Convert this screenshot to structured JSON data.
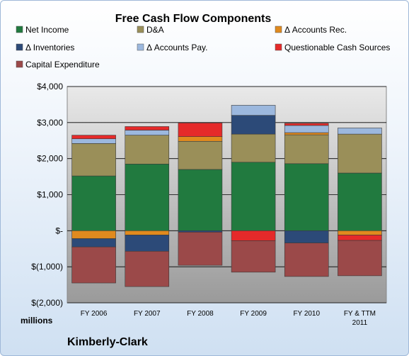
{
  "chart_data": {
    "type": "bar",
    "stacked": true,
    "title": "Free Cash Flow Components",
    "ylabel": "",
    "xlabel": "",
    "unit_label": "millions",
    "company": "Kimberly-Clark",
    "categories": [
      "FY 2006",
      "FY 2007",
      "FY 2008",
      "FY 2009",
      "FY 2010",
      "FY & TTM 2011"
    ],
    "ylim": [
      -2000,
      4000
    ],
    "yticks": [
      {
        "value": 4000,
        "label": "$4,000"
      },
      {
        "value": 3000,
        "label": "$3,000"
      },
      {
        "value": 2000,
        "label": "$2,000"
      },
      {
        "value": 1000,
        "label": "$1,000"
      },
      {
        "value": 0,
        "label": "$-"
      },
      {
        "value": -1000,
        "label": "$(1,000)"
      },
      {
        "value": -2000,
        "label": "$(2,000)"
      }
    ],
    "grid": true,
    "legend_position": "top",
    "series": [
      {
        "name": "Net Income",
        "color": "#217a3f",
        "values": [
          1520,
          1850,
          1700,
          1900,
          1860,
          1600
        ]
      },
      {
        "name": "D&A",
        "color": "#9a8f59",
        "values": [
          900,
          800,
          780,
          780,
          800,
          1080
        ]
      },
      {
        "name": "Δ Accounts Rec.",
        "color": "#e08a1e",
        "values": [
          -220,
          -120,
          130,
          0,
          60,
          -120
        ]
      },
      {
        "name": "Δ Inventories",
        "color": "#2c4a78",
        "values": [
          -230,
          -450,
          -40,
          520,
          -340,
          0
        ]
      },
      {
        "name": "Δ Accounts Pay.",
        "color": "#9cb8de",
        "values": [
          130,
          140,
          0,
          280,
          200,
          170
        ]
      },
      {
        "name": "Questionable Cash Sources",
        "color": "#e52a2a",
        "values": [
          100,
          100,
          380,
          -280,
          60,
          -150
        ]
      },
      {
        "name": "Capital Expenditure",
        "color": "#9b4949",
        "values": [
          -1000,
          -980,
          -920,
          -870,
          -930,
          -980
        ]
      }
    ]
  }
}
